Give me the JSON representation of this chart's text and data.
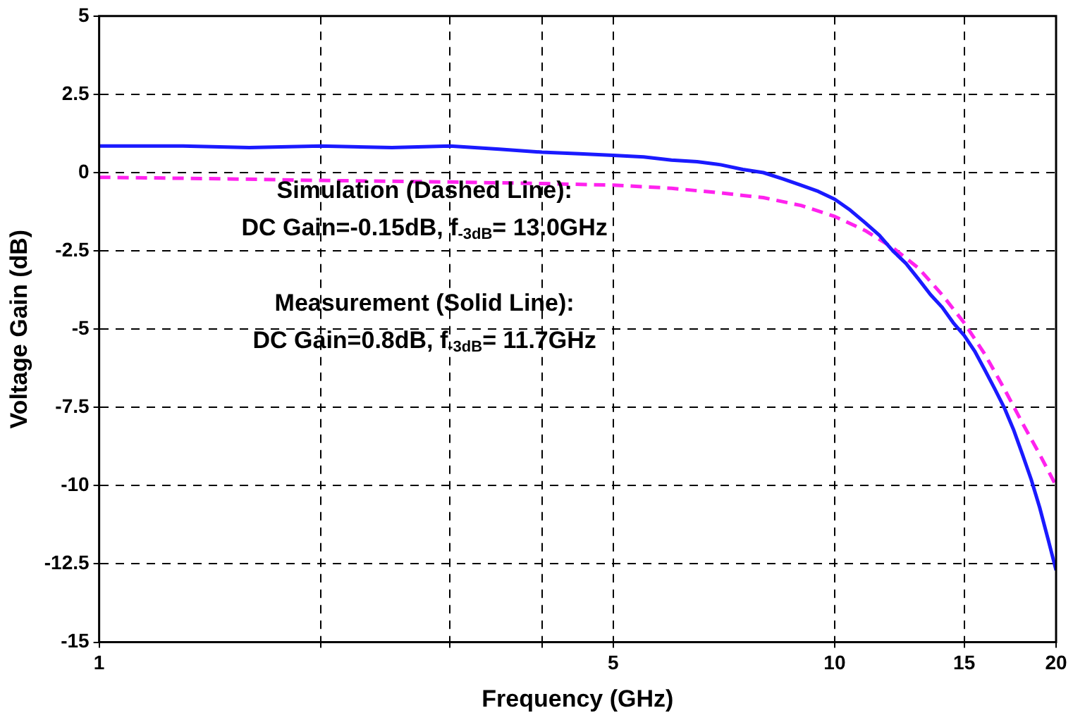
{
  "chart_data": {
    "type": "line",
    "xlabel": "Frequency (GHz)",
    "ylabel": "Voltage Gain (dB)",
    "log": "x",
    "xlim": [
      1,
      20
    ],
    "xticks": [
      1,
      {
        "value": 2,
        "label": null
      },
      {
        "value": 3,
        "label": null
      },
      {
        "value": 4,
        "label": null
      },
      5,
      10,
      15,
      20
    ],
    "ylim": [
      -15,
      5
    ],
    "yticks": [
      -15,
      -12.5,
      -10,
      -7.5,
      -5,
      -2.5,
      0,
      2.5,
      5
    ],
    "grid": true,
    "marker": "none",
    "series": [
      {
        "color": "#1a1aff",
        "line_style": "solid",
        "x": [
          1,
          1.3,
          1.6,
          2,
          2.5,
          3,
          3.5,
          4,
          4.5,
          5,
          5.5,
          6,
          6.5,
          7,
          7.5,
          8,
          8.5,
          9,
          9.5,
          10,
          10.5,
          11,
          11.5,
          12,
          12.5,
          13,
          13.5,
          14,
          14.5,
          15,
          15.5,
          16,
          16.5,
          17,
          17.5,
          18,
          18.5,
          19,
          19.5,
          20
        ],
        "values": [
          0.85,
          0.85,
          0.8,
          0.85,
          0.8,
          0.85,
          0.75,
          0.65,
          0.6,
          0.55,
          0.5,
          0.4,
          0.35,
          0.25,
          0.1,
          0,
          -0.2,
          -0.4,
          -0.6,
          -0.85,
          -1.2,
          -1.6,
          -2,
          -2.5,
          -2.9,
          -3.4,
          -3.9,
          -4.3,
          -4.8,
          -5.2,
          -5.7,
          -6.3,
          -6.9,
          -7.5,
          -8.2,
          -9,
          -9.8,
          -10.7,
          -11.7,
          -12.7
        ]
      },
      {
        "color": "#ff22ee",
        "line_style": "dashed",
        "x": [
          1,
          1.5,
          2,
          3,
          4,
          5,
          6,
          7,
          8,
          9,
          10,
          11,
          12,
          13,
          14,
          15,
          16,
          17,
          18,
          19,
          20
        ],
        "values": [
          -0.15,
          -0.2,
          -0.25,
          -0.3,
          -0.35,
          -0.4,
          -0.5,
          -0.65,
          -0.8,
          -1.05,
          -1.4,
          -1.85,
          -2.4,
          -3.05,
          -3.9,
          -4.8,
          -5.8,
          -6.9,
          -8,
          -9,
          -10
        ]
      }
    ],
    "annotations": [
      "Simulation (Dashed Line):",
      "DC Gain=-0.15dB, f$_{-3dB}$= 13.0GHz",
      "Measurement (Solid Line):",
      "DC Gain=0.8dB, f$_{-3dB}$= 11.7GHz"
    ]
  }
}
